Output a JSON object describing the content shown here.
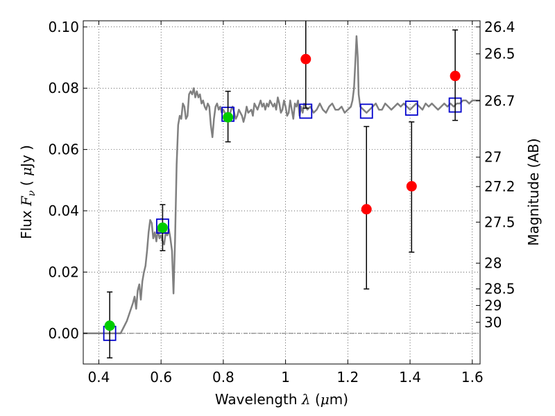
{
  "chart_data": {
    "type": "scatter",
    "xlabel_parts": [
      "Wavelength  ",
      "λ",
      " (",
      "μ",
      "m)"
    ],
    "ylabel_parts": [
      "Flux  ",
      "F",
      "ν",
      "  ( ",
      "μ",
      "Jy )"
    ],
    "y2label": "Magnitude (AB)",
    "xlim": [
      0.35,
      1.625
    ],
    "ylim": [
      -0.01,
      0.102
    ],
    "grid": true,
    "x_ticks": [
      0.4,
      0.6,
      0.8,
      1.0,
      1.2,
      1.4,
      1.6
    ],
    "x_tick_labels": [
      "0.4",
      "0.6",
      "0.8",
      "1",
      "1.2",
      "1.4",
      "1.6"
    ],
    "y_ticks": [
      0.0,
      0.02,
      0.04,
      0.06,
      0.08,
      0.1
    ],
    "y_tick_labels": [
      "0.00",
      "0.02",
      "0.04",
      "0.06",
      "0.08",
      "0.10"
    ],
    "y2_ticks": [
      {
        "label": "26.4",
        "flux": 0.1
      },
      {
        "label": "26.5",
        "flux": 0.0912
      },
      {
        "label": "26.7",
        "flux": 0.0759
      },
      {
        "label": "27",
        "flux": 0.0575
      },
      {
        "label": "27.2",
        "flux": 0.0479
      },
      {
        "label": "27.5",
        "flux": 0.0363
      },
      {
        "label": "28",
        "flux": 0.0229
      },
      {
        "label": "28.5",
        "flux": 0.0145
      },
      {
        "label": "29",
        "flux": 0.0091
      },
      {
        "label": "30",
        "flux": 0.0036
      }
    ],
    "series": [
      {
        "kind": "line",
        "color": "#808080",
        "points": [
          [
            0.35,
            0.0
          ],
          [
            0.47,
            0.0
          ],
          [
            0.48,
            0.002
          ],
          [
            0.49,
            0.004
          ],
          [
            0.5,
            0.007
          ],
          [
            0.51,
            0.01
          ],
          [
            0.515,
            0.012
          ],
          [
            0.52,
            0.008
          ],
          [
            0.525,
            0.014
          ],
          [
            0.53,
            0.016
          ],
          [
            0.535,
            0.011
          ],
          [
            0.54,
            0.017
          ],
          [
            0.545,
            0.02
          ],
          [
            0.55,
            0.022
          ],
          [
            0.555,
            0.027
          ],
          [
            0.56,
            0.033
          ],
          [
            0.565,
            0.037
          ],
          [
            0.57,
            0.036
          ],
          [
            0.575,
            0.031
          ],
          [
            0.58,
            0.033
          ],
          [
            0.585,
            0.03
          ],
          [
            0.59,
            0.034
          ],
          [
            0.595,
            0.031
          ],
          [
            0.6,
            0.032
          ],
          [
            0.605,
            0.03
          ],
          [
            0.61,
            0.029
          ],
          [
            0.615,
            0.033
          ],
          [
            0.62,
            0.032
          ],
          [
            0.625,
            0.034
          ],
          [
            0.63,
            0.031
          ],
          [
            0.635,
            0.027
          ],
          [
            0.64,
            0.013
          ],
          [
            0.645,
            0.03
          ],
          [
            0.65,
            0.055
          ],
          [
            0.655,
            0.068
          ],
          [
            0.66,
            0.071
          ],
          [
            0.665,
            0.07
          ],
          [
            0.67,
            0.075
          ],
          [
            0.675,
            0.074
          ],
          [
            0.68,
            0.07
          ],
          [
            0.685,
            0.071
          ],
          [
            0.69,
            0.078
          ],
          [
            0.695,
            0.079
          ],
          [
            0.7,
            0.078
          ],
          [
            0.705,
            0.08
          ],
          [
            0.71,
            0.077
          ],
          [
            0.715,
            0.079
          ],
          [
            0.72,
            0.077
          ],
          [
            0.725,
            0.078
          ],
          [
            0.73,
            0.075
          ],
          [
            0.735,
            0.076
          ],
          [
            0.74,
            0.074
          ],
          [
            0.745,
            0.073
          ],
          [
            0.75,
            0.075
          ],
          [
            0.755,
            0.074
          ],
          [
            0.76,
            0.068
          ],
          [
            0.765,
            0.064
          ],
          [
            0.77,
            0.07
          ],
          [
            0.775,
            0.074
          ],
          [
            0.78,
            0.075
          ],
          [
            0.785,
            0.073
          ],
          [
            0.79,
            0.074
          ],
          [
            0.795,
            0.072
          ],
          [
            0.8,
            0.073
          ],
          [
            0.81,
            0.071
          ],
          [
            0.815,
            0.072
          ],
          [
            0.82,
            0.071
          ],
          [
            0.825,
            0.073
          ],
          [
            0.83,
            0.074
          ],
          [
            0.835,
            0.072
          ],
          [
            0.84,
            0.07
          ],
          [
            0.845,
            0.071
          ],
          [
            0.85,
            0.073
          ],
          [
            0.86,
            0.071
          ],
          [
            0.865,
            0.069
          ],
          [
            0.87,
            0.071
          ],
          [
            0.875,
            0.074
          ],
          [
            0.88,
            0.072
          ],
          [
            0.89,
            0.073
          ],
          [
            0.895,
            0.071
          ],
          [
            0.9,
            0.075
          ],
          [
            0.905,
            0.074
          ],
          [
            0.91,
            0.073
          ],
          [
            0.92,
            0.076
          ],
          [
            0.925,
            0.074
          ],
          [
            0.93,
            0.075
          ],
          [
            0.935,
            0.073
          ],
          [
            0.94,
            0.075
          ],
          [
            0.945,
            0.074
          ],
          [
            0.95,
            0.076
          ],
          [
            0.96,
            0.074
          ],
          [
            0.965,
            0.075
          ],
          [
            0.97,
            0.073
          ],
          [
            0.975,
            0.077
          ],
          [
            0.98,
            0.075
          ],
          [
            0.985,
            0.072
          ],
          [
            0.99,
            0.073
          ],
          [
            0.995,
            0.076
          ],
          [
            1.0,
            0.074
          ],
          [
            1.005,
            0.071
          ],
          [
            1.01,
            0.072
          ],
          [
            1.015,
            0.076
          ],
          [
            1.02,
            0.073
          ],
          [
            1.025,
            0.07
          ],
          [
            1.03,
            0.075
          ],
          [
            1.035,
            0.074
          ],
          [
            1.04,
            0.076
          ],
          [
            1.045,
            0.071
          ],
          [
            1.05,
            0.074
          ],
          [
            1.055,
            0.072
          ],
          [
            1.06,
            0.075
          ],
          [
            1.07,
            0.073
          ],
          [
            1.08,
            0.074
          ],
          [
            1.09,
            0.072
          ],
          [
            1.1,
            0.073
          ],
          [
            1.11,
            0.075
          ],
          [
            1.12,
            0.073
          ],
          [
            1.13,
            0.072
          ],
          [
            1.14,
            0.074
          ],
          [
            1.15,
            0.075
          ],
          [
            1.16,
            0.073
          ],
          [
            1.17,
            0.073
          ],
          [
            1.18,
            0.074
          ],
          [
            1.19,
            0.072
          ],
          [
            1.2,
            0.073
          ],
          [
            1.21,
            0.074
          ],
          [
            1.215,
            0.076
          ],
          [
            1.22,
            0.08
          ],
          [
            1.225,
            0.09
          ],
          [
            1.228,
            0.097
          ],
          [
            1.232,
            0.09
          ],
          [
            1.235,
            0.078
          ],
          [
            1.24,
            0.074
          ],
          [
            1.25,
            0.073
          ],
          [
            1.26,
            0.072
          ],
          [
            1.27,
            0.073
          ],
          [
            1.28,
            0.074
          ],
          [
            1.29,
            0.075
          ],
          [
            1.3,
            0.073
          ],
          [
            1.31,
            0.073
          ],
          [
            1.32,
            0.075
          ],
          [
            1.33,
            0.074
          ],
          [
            1.34,
            0.073
          ],
          [
            1.35,
            0.074
          ],
          [
            1.36,
            0.075
          ],
          [
            1.37,
            0.074
          ],
          [
            1.38,
            0.075
          ],
          [
            1.39,
            0.074
          ],
          [
            1.4,
            0.073
          ],
          [
            1.41,
            0.074
          ],
          [
            1.42,
            0.075
          ],
          [
            1.43,
            0.074
          ],
          [
            1.44,
            0.073
          ],
          [
            1.45,
            0.075
          ],
          [
            1.46,
            0.074
          ],
          [
            1.47,
            0.075
          ],
          [
            1.48,
            0.074
          ],
          [
            1.49,
            0.073
          ],
          [
            1.5,
            0.074
          ],
          [
            1.51,
            0.075
          ],
          [
            1.52,
            0.074
          ],
          [
            1.53,
            0.075
          ],
          [
            1.54,
            0.074
          ],
          [
            1.55,
            0.075
          ],
          [
            1.56,
            0.075
          ],
          [
            1.57,
            0.076
          ],
          [
            1.58,
            0.076
          ],
          [
            1.59,
            0.075
          ],
          [
            1.6,
            0.076
          ],
          [
            1.625,
            0.076
          ]
        ]
      },
      {
        "kind": "points",
        "marker": "square",
        "color": "#0000cc",
        "points": [
          [
            0.435,
            0.0
          ],
          [
            0.605,
            0.035
          ],
          [
            0.815,
            0.0715
          ],
          [
            1.065,
            0.0725
          ],
          [
            1.26,
            0.0725
          ],
          [
            1.405,
            0.0735
          ],
          [
            1.545,
            0.0745
          ]
        ]
      },
      {
        "kind": "points",
        "marker": "circle",
        "color": "#00cc00",
        "points": [
          [
            0.435,
            0.0025
          ],
          [
            0.605,
            0.0345
          ],
          [
            0.815,
            0.0705
          ]
        ],
        "err": [
          [
            -0.008,
            0.0135
          ],
          [
            0.027,
            0.042
          ],
          [
            0.0625,
            0.079
          ]
        ]
      },
      {
        "kind": "points",
        "marker": "circle",
        "color": "#ff0000",
        "points": [
          [
            1.065,
            0.0895
          ],
          [
            1.26,
            0.0405
          ],
          [
            1.405,
            0.048
          ],
          [
            1.545,
            0.084
          ]
        ],
        "err": [
          [
            0.0735,
            0.105
          ],
          [
            0.0145,
            0.0675
          ],
          [
            0.0265,
            0.069
          ],
          [
            0.0695,
            0.099
          ]
        ]
      }
    ]
  }
}
